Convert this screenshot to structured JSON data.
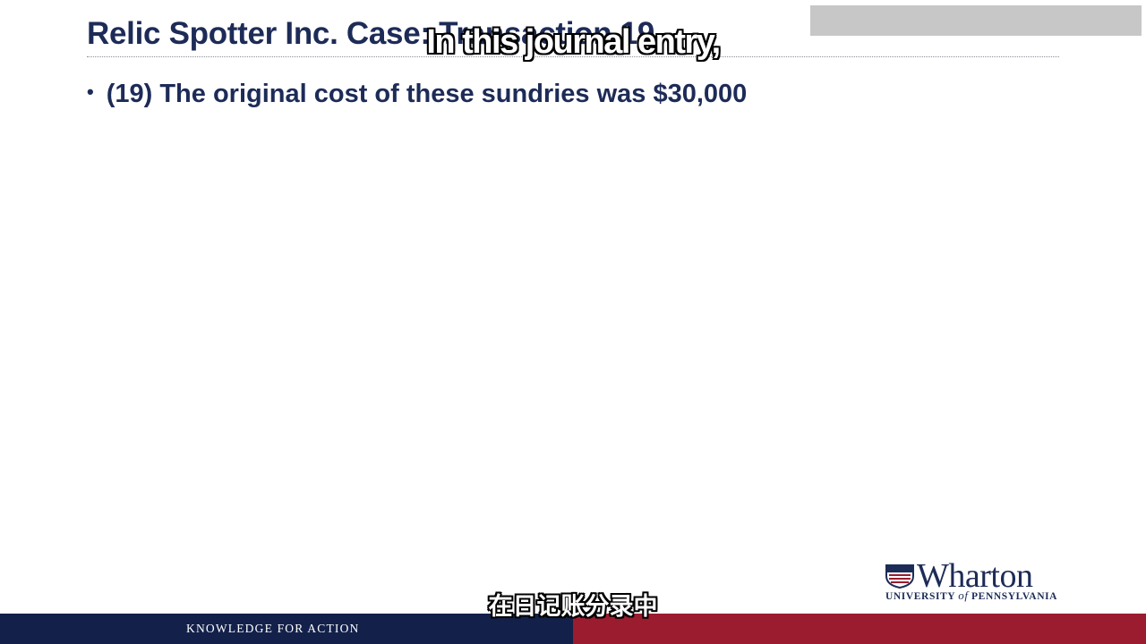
{
  "slide": {
    "title": "Relic Spotter Inc. Case: Transaction 19",
    "bullet": "(19) The original cost of these sundries was $30,000"
  },
  "subtitles": {
    "english": "In this journal entry,",
    "chinese": "在日记账分录中"
  },
  "branding": {
    "logo_word": "Wharton",
    "university_prefix": "UNIVERSITY ",
    "university_of": "of",
    "university_suffix": " PENNSYLVANIA",
    "footer_tagline": "KNOWLEDGE FOR ACTION"
  },
  "colors": {
    "navy": "#1d2b57",
    "footer_navy": "#13204a",
    "footer_red": "#9b1c2e"
  },
  "icons": {
    "logo_shield": "penn-shield-icon",
    "bullet": "bullet-dot"
  }
}
